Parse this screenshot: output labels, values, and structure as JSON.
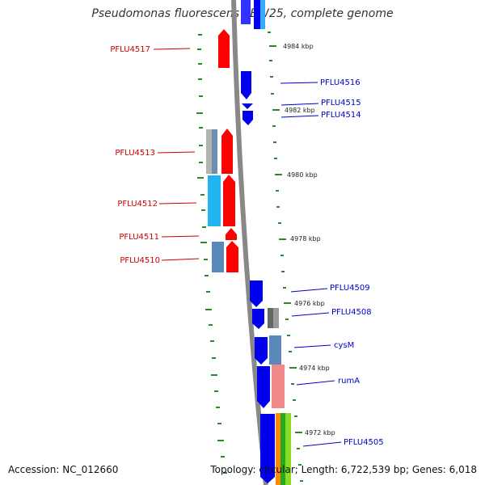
{
  "title": "Pseudomonas fluorescens SBW25, complete genome",
  "accession_text": "Accession: NC_012660",
  "summary_text": "Topology: circular; Length: 6,722,539 bp; Genes: 6,018",
  "colors": {
    "reverse_gene": "#ff0000",
    "forward_gene": "#0000ff",
    "backbone": "#888888",
    "tick": "#2a8a2a",
    "reverse_label": "#cc0000",
    "forward_label": "#0000cc"
  },
  "scale_labels": [
    "4984 kbp",
    "4982 kbp",
    "4980 kbp",
    "4978 kbp",
    "4976 kbp",
    "4974 kbp",
    "4972 kbp"
  ],
  "reverse_genes": [
    "PFLU4517",
    "PFLU4513",
    "PFLU4512",
    "PFLU4511",
    "PFLU4510"
  ],
  "forward_genes": [
    "PFLU4516",
    "PFLU4515",
    "PFLU4514",
    "PFLU4509",
    "PFLU4508",
    "cysM",
    "rumA",
    "PFLU4505"
  ]
}
